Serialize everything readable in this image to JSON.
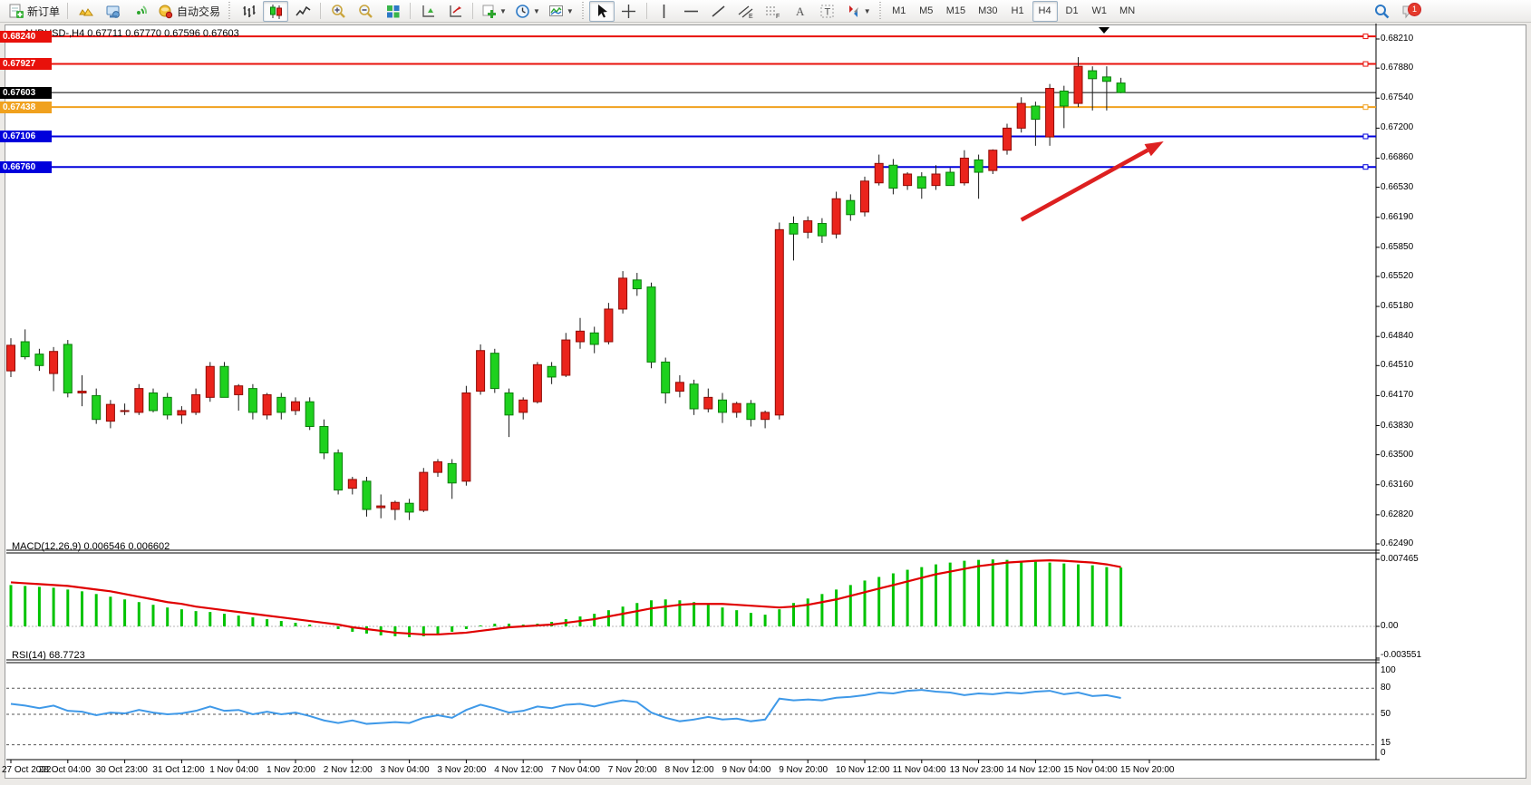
{
  "window": {
    "title": "AUDUSD-,H4  0.67711 0.67770 0.67596 0.67603",
    "search_tooltip": "search",
    "chat_badge": "1"
  },
  "toolbar": {
    "groups": [
      {
        "items": [
          {
            "icon": "doc-plus",
            "label": "新订单",
            "name": "new-order-button"
          }
        ]
      },
      {
        "sep": true,
        "items": [
          {
            "icon": "gold",
            "name": "market-watch-button"
          },
          {
            "icon": "terminal",
            "name": "terminal-button"
          },
          {
            "icon": "signal",
            "name": "signals-button"
          },
          {
            "icon": "autotrade",
            "label": "自动交易",
            "name": "auto-trading-button"
          }
        ]
      },
      {
        "handle": true,
        "items": [
          {
            "icon": "bars-chart",
            "name": "bar-chart-button"
          },
          {
            "icon": "candles",
            "name": "candlestick-chart-button",
            "pressed": true
          },
          {
            "icon": "linechart",
            "name": "line-chart-button"
          }
        ]
      },
      {
        "sep": true,
        "items": [
          {
            "icon": "zoom-in",
            "name": "zoom-in-button"
          },
          {
            "icon": "zoom-out",
            "name": "zoom-out-button"
          },
          {
            "icon": "tile",
            "name": "tile-windows-button"
          }
        ]
      },
      {
        "sep": true,
        "items": [
          {
            "icon": "profile1",
            "name": "auto-scroll-button"
          },
          {
            "icon": "profile2",
            "name": "chart-shift-button"
          }
        ]
      },
      {
        "sep": true,
        "items": [
          {
            "icon": "add-ind",
            "dd": true,
            "name": "add-indicator-dropdown"
          },
          {
            "icon": "clock",
            "dd": true,
            "name": "periods-dropdown"
          },
          {
            "icon": "template",
            "dd": true,
            "name": "templates-dropdown"
          }
        ]
      },
      {
        "handle": true,
        "items": [
          {
            "icon": "cursor",
            "name": "cursor-tool-button",
            "pressed": true
          },
          {
            "icon": "crosshair",
            "name": "crosshair-tool-button"
          }
        ]
      },
      {
        "sep": true,
        "items": [
          {
            "icon": "vline",
            "name": "vertical-line-tool"
          },
          {
            "icon": "hline",
            "name": "horizontal-line-tool"
          },
          {
            "icon": "trendline",
            "name": "trendline-tool"
          },
          {
            "icon": "channel",
            "name": "equidistant-channel-tool"
          },
          {
            "icon": "fibo",
            "name": "fibonacci-tool"
          },
          {
            "icon": "textA",
            "name": "text-tool"
          },
          {
            "icon": "textT",
            "name": "text-label-tool"
          },
          {
            "icon": "arrows",
            "dd": true,
            "name": "arrows-tool-dropdown"
          }
        ]
      },
      {
        "handle": true,
        "timeframes": [
          "M1",
          "M5",
          "M15",
          "M30",
          "H1",
          "H4",
          "D1",
          "W1",
          "MN"
        ],
        "active": "H4"
      }
    ]
  },
  "panes": {
    "macd_label": "MACD(12,26,9) 0.006546 0.006602",
    "rsi_label": "RSI(14) 68.7723"
  },
  "chart_data": {
    "type": "candlestick",
    "symbol": "AUDUSD-",
    "timeframe": "H4",
    "current_ohlc": {
      "open": "0.67711",
      "high": "0.67770",
      "low": "0.67596",
      "close": "0.67603"
    },
    "price_axis": {
      "ticks": [
        "0.68210",
        "0.67880",
        "0.67540",
        "0.67200",
        "0.66860",
        "0.66530",
        "0.66190",
        "0.65850",
        "0.65520",
        "0.65180",
        "0.64840",
        "0.64510",
        "0.64170",
        "0.63830",
        "0.63500",
        "0.63160",
        "0.62820",
        "0.62490"
      ],
      "max": 0.6821,
      "min": 0.6249
    },
    "time_axis": {
      "labels": [
        "27 Oct 2022",
        "28 Oct 04:00",
        "30 Oct 23:00",
        "31 Oct 12:00",
        "1 Nov 04:00",
        "1 Nov 20:00",
        "2 Nov 12:00",
        "3 Nov 04:00",
        "3 Nov 20:00",
        "4 Nov 12:00",
        "7 Nov 04:00",
        "7 Nov 20:00",
        "8 Nov 12:00",
        "9 Nov 04:00",
        "9 Nov 20:00",
        "10 Nov 12:00",
        "11 Nov 04:00",
        "13 Nov 23:00",
        "14 Nov 12:00",
        "15 Nov 04:00",
        "15 Nov 20:00"
      ],
      "bars_per_tick": 4
    },
    "candles": [
      [
        0.6445,
        0.6482,
        0.6438,
        0.6474
      ],
      [
        0.6478,
        0.6492,
        0.6458,
        0.6461
      ],
      [
        0.6464,
        0.647,
        0.6445,
        0.6451
      ],
      [
        0.6442,
        0.6472,
        0.6422,
        0.6467
      ],
      [
        0.6475,
        0.648,
        0.6415,
        0.642
      ],
      [
        0.642,
        0.644,
        0.6405,
        0.6422
      ],
      [
        0.6417,
        0.6425,
        0.6385,
        0.639
      ],
      [
        0.6388,
        0.6412,
        0.638,
        0.6407
      ],
      [
        0.64,
        0.6408,
        0.6395,
        0.64
      ],
      [
        0.6398,
        0.643,
        0.6395,
        0.6425
      ],
      [
        0.642,
        0.6425,
        0.6398,
        0.64
      ],
      [
        0.6415,
        0.642,
        0.639,
        0.6395
      ],
      [
        0.6395,
        0.6405,
        0.6385,
        0.64
      ],
      [
        0.6398,
        0.6425,
        0.6395,
        0.6418
      ],
      [
        0.6415,
        0.6455,
        0.641,
        0.645
      ],
      [
        0.645,
        0.6455,
        0.6415,
        0.6415
      ],
      [
        0.6418,
        0.643,
        0.64,
        0.6428
      ],
      [
        0.6425,
        0.643,
        0.639,
        0.6398
      ],
      [
        0.6395,
        0.642,
        0.639,
        0.6418
      ],
      [
        0.6415,
        0.642,
        0.639,
        0.6398
      ],
      [
        0.64,
        0.6415,
        0.6395,
        0.641
      ],
      [
        0.641,
        0.6415,
        0.6378,
        0.6382
      ],
      [
        0.6382,
        0.639,
        0.6345,
        0.6352
      ],
      [
        0.6352,
        0.6356,
        0.6305,
        0.631
      ],
      [
        0.6312,
        0.6325,
        0.6305,
        0.6322
      ],
      [
        0.632,
        0.6325,
        0.628,
        0.6288
      ],
      [
        0.629,
        0.6305,
        0.6278,
        0.6292
      ],
      [
        0.6288,
        0.6298,
        0.6276,
        0.6296
      ],
      [
        0.6295,
        0.63,
        0.6276,
        0.6285
      ],
      [
        0.6287,
        0.6335,
        0.6285,
        0.633
      ],
      [
        0.633,
        0.6345,
        0.6325,
        0.6342
      ],
      [
        0.634,
        0.6345,
        0.63,
        0.6318
      ],
      [
        0.632,
        0.6428,
        0.6315,
        0.642
      ],
      [
        0.6422,
        0.6475,
        0.6418,
        0.6468
      ],
      [
        0.6465,
        0.647,
        0.642,
        0.6425
      ],
      [
        0.642,
        0.6425,
        0.637,
        0.6395
      ],
      [
        0.6398,
        0.6415,
        0.639,
        0.6412
      ],
      [
        0.641,
        0.6455,
        0.6408,
        0.6452
      ],
      [
        0.645,
        0.6455,
        0.643,
        0.6438
      ],
      [
        0.644,
        0.6488,
        0.6438,
        0.648
      ],
      [
        0.6478,
        0.6505,
        0.647,
        0.649
      ],
      [
        0.6488,
        0.6495,
        0.6465,
        0.6475
      ],
      [
        0.6478,
        0.6522,
        0.6475,
        0.6515
      ],
      [
        0.6515,
        0.6558,
        0.651,
        0.655
      ],
      [
        0.6548,
        0.6556,
        0.653,
        0.6538
      ],
      [
        0.654,
        0.6545,
        0.6448,
        0.6455
      ],
      [
        0.6455,
        0.646,
        0.6408,
        0.642
      ],
      [
        0.6422,
        0.644,
        0.6415,
        0.6432
      ],
      [
        0.643,
        0.6435,
        0.6395,
        0.6402
      ],
      [
        0.6402,
        0.6425,
        0.6398,
        0.6415
      ],
      [
        0.6412,
        0.642,
        0.6386,
        0.6398
      ],
      [
        0.6398,
        0.641,
        0.6392,
        0.6408
      ],
      [
        0.6408,
        0.6412,
        0.6382,
        0.639
      ],
      [
        0.639,
        0.64,
        0.638,
        0.6398
      ],
      [
        0.6395,
        0.6613,
        0.639,
        0.6605
      ],
      [
        0.6612,
        0.662,
        0.657,
        0.66
      ],
      [
        0.6602,
        0.662,
        0.6595,
        0.6615
      ],
      [
        0.6612,
        0.6618,
        0.659,
        0.6598
      ],
      [
        0.66,
        0.6648,
        0.6595,
        0.664
      ],
      [
        0.6638,
        0.6645,
        0.6615,
        0.6622
      ],
      [
        0.6625,
        0.6665,
        0.662,
        0.666
      ],
      [
        0.6658,
        0.669,
        0.6655,
        0.668
      ],
      [
        0.6678,
        0.6685,
        0.6645,
        0.6652
      ],
      [
        0.6655,
        0.667,
        0.665,
        0.6668
      ],
      [
        0.6665,
        0.667,
        0.664,
        0.6652
      ],
      [
        0.6655,
        0.6678,
        0.665,
        0.6668
      ],
      [
        0.667,
        0.6675,
        0.6655,
        0.6655
      ],
      [
        0.6658,
        0.6695,
        0.6655,
        0.6686
      ],
      [
        0.6684,
        0.669,
        0.664,
        0.667
      ],
      [
        0.6672,
        0.6696,
        0.6668,
        0.6695
      ],
      [
        0.6695,
        0.6725,
        0.669,
        0.672
      ],
      [
        0.672,
        0.6755,
        0.6715,
        0.6748
      ],
      [
        0.6745,
        0.675,
        0.67,
        0.673
      ],
      [
        0.671,
        0.677,
        0.67,
        0.6765
      ],
      [
        0.6762,
        0.6768,
        0.672,
        0.6745
      ],
      [
        0.6748,
        0.68005,
        0.6744,
        0.679
      ],
      [
        0.6785,
        0.679,
        0.674,
        0.6776
      ],
      [
        0.6778,
        0.679,
        0.674,
        0.6773
      ],
      [
        0.67711,
        0.6777,
        0.67596,
        0.67603
      ]
    ],
    "hlines": [
      {
        "value": "0.68240",
        "price": 0.6824,
        "color": "#e8110b",
        "width": 2,
        "handle_left": true
      },
      {
        "value": "0.67927",
        "price": 0.67927,
        "color": "#e8110b",
        "width": 2
      },
      {
        "value": "0.67438",
        "price": 0.67438,
        "color": "#f0a11e",
        "width": 2
      },
      {
        "value": "0.67106",
        "price": 0.67106,
        "color": "#0000dc",
        "width": 2
      },
      {
        "value": "0.66760",
        "price": 0.6676,
        "color": "#0000dc",
        "width": 2
      }
    ],
    "bid_line": {
      "value": "0.67603",
      "price": 0.67603,
      "color": "#000000"
    },
    "arrow_annotation": {
      "from_bar": 71,
      "from_price": 0.6616,
      "to_bar": 81,
      "to_price": 0.6705,
      "color": "#dd2020"
    },
    "indicators": [
      {
        "name": "MACD",
        "params": "12,26,9",
        "values_label": [
          "0.006546",
          "0.006602"
        ],
        "axis_ticks": [
          "0.007465",
          "0.00",
          "-0.003551"
        ],
        "axis_max": 0.007465,
        "axis_min": -0.003551,
        "histogram": [
          0.0046,
          0.0045,
          0.0044,
          0.0043,
          0.0041,
          0.0039,
          0.0036,
          0.0033,
          0.003,
          0.0027,
          0.0024,
          0.0021,
          0.0019,
          0.0017,
          0.0016,
          0.0014,
          0.0012,
          0.001,
          0.0008,
          0.0006,
          0.0004,
          0.0002,
          0.0,
          -0.0003,
          -0.0006,
          -0.0008,
          -0.001,
          -0.0011,
          -0.0012,
          -0.0011,
          -0.0009,
          -0.0006,
          -0.0003,
          0.0001,
          0.0003,
          0.0003,
          0.0002,
          0.0003,
          0.0005,
          0.0008,
          0.0011,
          0.0014,
          0.0018,
          0.0022,
          0.0026,
          0.0029,
          0.003,
          0.0029,
          0.0027,
          0.0024,
          0.0021,
          0.0018,
          0.0015,
          0.0013,
          0.0019,
          0.0026,
          0.0031,
          0.0036,
          0.0041,
          0.0046,
          0.0051,
          0.0055,
          0.0059,
          0.0063,
          0.0066,
          0.0069,
          0.0071,
          0.0073,
          0.0074,
          0.00745,
          0.0074,
          0.0073,
          0.0072,
          0.0071,
          0.007,
          0.0069,
          0.0068,
          0.0066,
          0.006546
        ],
        "signal": [
          0.0049,
          0.0048,
          0.0047,
          0.0046,
          0.0045,
          0.0043,
          0.0041,
          0.0039,
          0.0036,
          0.0033,
          0.003,
          0.0027,
          0.0025,
          0.0022,
          0.002,
          0.0018,
          0.0016,
          0.0014,
          0.0012,
          0.001,
          0.0008,
          0.0006,
          0.0004,
          0.0002,
          -0.0001,
          -0.0003,
          -0.0005,
          -0.0007,
          -0.0008,
          -0.0009,
          -0.0009,
          -0.0008,
          -0.0007,
          -0.0005,
          -0.0003,
          -0.0001,
          0.0,
          0.0001,
          0.0002,
          0.0004,
          0.0006,
          0.0008,
          0.0011,
          0.0014,
          0.0017,
          0.002,
          0.0022,
          0.0024,
          0.0025,
          0.0025,
          0.0025,
          0.0024,
          0.0023,
          0.0022,
          0.0021,
          0.0022,
          0.0024,
          0.0027,
          0.003,
          0.0034,
          0.0038,
          0.0042,
          0.0046,
          0.005,
          0.0054,
          0.0058,
          0.0061,
          0.0064,
          0.0067,
          0.0069,
          0.0071,
          0.0072,
          0.0073,
          0.00735,
          0.0073,
          0.0072,
          0.0071,
          0.0069,
          0.006602
        ]
      },
      {
        "name": "RSI",
        "params": "14",
        "values_label": [
          "68.7723"
        ],
        "axis_ticks": [
          "100",
          "80",
          "50",
          "15",
          "0"
        ],
        "axis_max": 100,
        "axis_min": 0,
        "dashed_levels": [
          80,
          50,
          15
        ],
        "values": [
          62,
          60,
          57,
          60,
          54,
          53,
          49,
          52,
          51,
          55,
          52,
          50,
          51,
          54,
          59,
          54,
          55,
          50,
          53,
          50,
          52,
          48,
          43,
          40,
          43,
          39,
          40,
          41,
          40,
          46,
          49,
          46,
          55,
          61,
          57,
          52,
          54,
          59,
          57,
          61,
          62,
          59,
          63,
          66,
          64,
          52,
          46,
          42,
          44,
          47,
          44,
          45,
          42,
          44,
          68,
          66,
          67,
          66,
          69,
          70,
          72,
          75,
          74,
          77,
          78,
          76,
          75,
          72,
          74,
          73,
          75,
          74,
          76,
          77,
          73,
          75,
          71,
          72,
          68.7723
        ]
      }
    ]
  },
  "colors": {
    "up_candle": "#ea241c",
    "up_border": "#8f0b05",
    "down_candle": "#1ed11e",
    "down_border": "#0a7d0a",
    "wick": "#1c1c1c",
    "macd_histogram": "#00c300",
    "macd_signal": "#e00000",
    "rsi_line": "#3f99e8",
    "level_dash": "#555555",
    "badge_red": "#e8110b",
    "badge_orange": "#f0a11e",
    "badge_blue": "#0000dc",
    "badge_black": "#000000"
  }
}
